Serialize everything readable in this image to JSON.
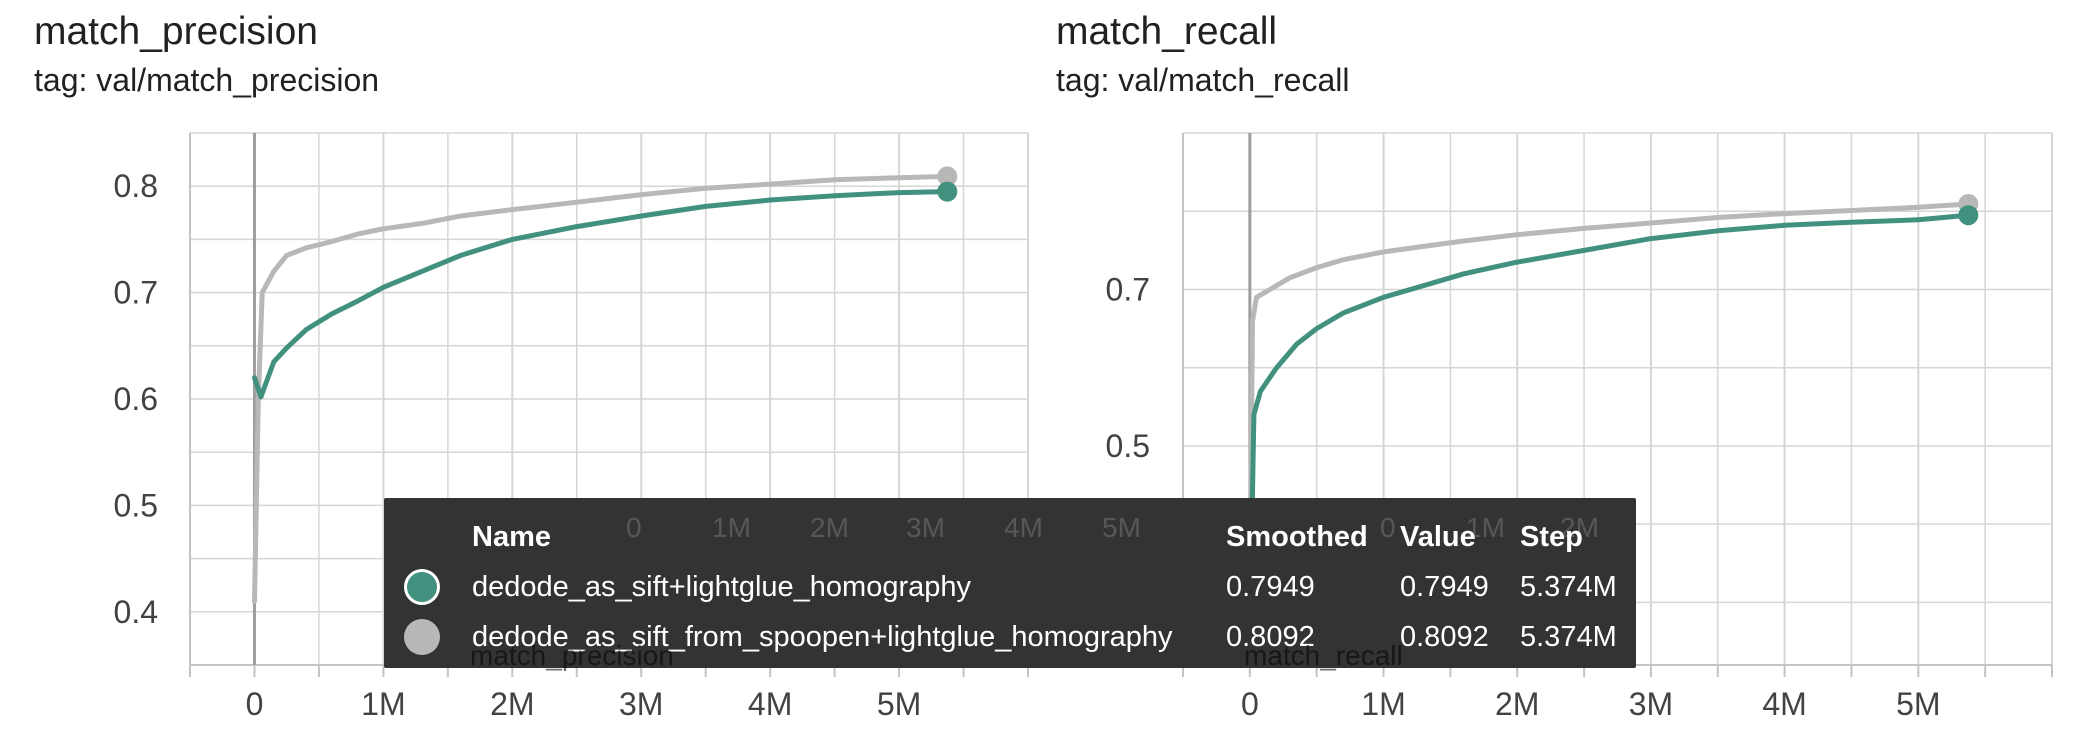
{
  "colors": {
    "teal": "#42917f",
    "gray": "#b8b8b8",
    "tooltip_bg": "#333333"
  },
  "charts": [
    {
      "title": "match_precision",
      "tag": "tag: val/match_precision"
    },
    {
      "title": "match_recall",
      "tag": "tag: val/match_recall"
    }
  ],
  "chart_data": [
    {
      "type": "line",
      "title": "match_precision",
      "subtitle": "tag: val/match_precision",
      "xlabel": "",
      "ylabel": "",
      "xlim": [
        -500000,
        6000000
      ],
      "ylim": [
        0.35,
        0.85
      ],
      "x_ticks": [
        0,
        1000000,
        2000000,
        3000000,
        4000000,
        5000000
      ],
      "x_tick_labels": [
        "0",
        "1M",
        "2M",
        "3M",
        "4M",
        "5M"
      ],
      "y_ticks": [
        0.4,
        0.5,
        0.6,
        0.7,
        0.8
      ],
      "y_tick_labels": [
        "0.4",
        "0.5",
        "0.6",
        "0.7",
        "0.8"
      ],
      "grid": true,
      "series": [
        {
          "name": "dedode_as_sift+lightglue_homography",
          "color": "#42917f",
          "x": [
            0,
            50000,
            150000,
            250000,
            400000,
            600000,
            800000,
            1000000,
            1300000,
            1600000,
            2000000,
            2500000,
            3000000,
            3500000,
            4000000,
            4500000,
            5000000,
            5374000
          ],
          "y": [
            0.62,
            0.602,
            0.635,
            0.648,
            0.665,
            0.68,
            0.692,
            0.705,
            0.72,
            0.735,
            0.75,
            0.762,
            0.772,
            0.781,
            0.787,
            0.791,
            0.794,
            0.7949
          ]
        },
        {
          "name": "dedode_as_sift_from_spoopen+lightglue_homography",
          "color": "#b8b8b8",
          "x": [
            0,
            30000,
            60000,
            150000,
            250000,
            400000,
            600000,
            800000,
            1000000,
            1300000,
            1600000,
            2000000,
            2500000,
            3000000,
            3500000,
            4000000,
            4500000,
            5000000,
            5374000
          ],
          "y": [
            0.41,
            0.6,
            0.7,
            0.72,
            0.735,
            0.742,
            0.748,
            0.755,
            0.76,
            0.765,
            0.772,
            0.778,
            0.785,
            0.792,
            0.798,
            0.802,
            0.806,
            0.808,
            0.8092
          ]
        }
      ]
    },
    {
      "type": "line",
      "title": "match_recall",
      "subtitle": "tag: val/match_recall",
      "xlabel": "",
      "ylabel": "",
      "xlim": [
        -500000,
        6000000
      ],
      "ylim": [
        0.22,
        0.9
      ],
      "x_ticks": [
        0,
        1000000,
        2000000,
        3000000,
        4000000,
        5000000
      ],
      "x_tick_labels": [
        "0",
        "1M",
        "2M",
        "3M",
        "4M",
        "5M"
      ],
      "y_ticks": [
        0.3,
        0.5,
        0.7
      ],
      "y_tick_labels": [
        "0.3",
        "0.5",
        "0.7"
      ],
      "grid": true,
      "series": [
        {
          "name": "dedode_as_sift+lightglue_homography",
          "color": "#42917f",
          "x": [
            0,
            30000,
            80000,
            200000,
            350000,
            500000,
            700000,
            1000000,
            1300000,
            1600000,
            2000000,
            2500000,
            3000000,
            3500000,
            4000000,
            4500000,
            5000000,
            5374000
          ],
          "y": [
            0.25,
            0.54,
            0.57,
            0.6,
            0.63,
            0.65,
            0.67,
            0.69,
            0.705,
            0.72,
            0.735,
            0.75,
            0.765,
            0.775,
            0.782,
            0.786,
            0.789,
            0.7949
          ]
        },
        {
          "name": "dedode_as_sift_from_spoopen+lightglue_homography",
          "color": "#b8b8b8",
          "x": [
            0,
            20000,
            50000,
            150000,
            300000,
            500000,
            700000,
            1000000,
            1300000,
            1600000,
            2000000,
            2500000,
            3000000,
            3500000,
            4000000,
            4500000,
            5000000,
            5374000
          ],
          "y": [
            0.3,
            0.66,
            0.69,
            0.7,
            0.715,
            0.728,
            0.738,
            0.748,
            0.755,
            0.762,
            0.77,
            0.778,
            0.785,
            0.792,
            0.797,
            0.801,
            0.805,
            0.8092
          ]
        }
      ]
    }
  ],
  "tooltip": {
    "headers": {
      "name": "Name",
      "smoothed": "Smoothed",
      "value": "Value",
      "step": "Step"
    },
    "rows": [
      {
        "name": "dedode_as_sift+lightglue_homography",
        "smoothed": "0.7949",
        "value": "0.7949",
        "step": "5.374M",
        "color": "#42917f"
      },
      {
        "name": "dedode_as_sift_from_spoopen+lightglue_homography",
        "smoothed": "0.8092",
        "value": "0.8092",
        "step": "5.374M",
        "color": "#b8b8b8"
      }
    ]
  },
  "underlay_labels": {
    "left": "match_precision",
    "right": "match_recall"
  }
}
